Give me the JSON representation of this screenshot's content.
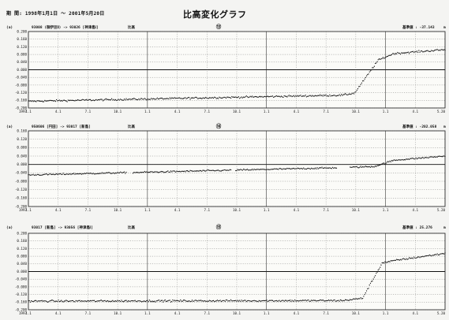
{
  "header": {
    "period_text": "期 間: 1998年1月1日 〜 2001年5月20日",
    "title": "比高変化グラフ"
  },
  "chart_data": [
    {
      "type": "scatter",
      "index_label": "(a)",
      "number": "⑬",
      "pair": "93008 (御伊豆Ⅱ) -> 93026 [神津島Ⅰ]",
      "component": "比高",
      "reference_label": "基準値 : -37.143",
      "unit": "m",
      "x_start_label": "1997",
      "x_tick_labels": [
        "1.1",
        "4.1",
        "7.1",
        "10.1",
        "1.1",
        "4.1",
        "7.1",
        "10.1",
        "1.1",
        "4.1",
        "7.1",
        "10.1",
        "1.1",
        "4.1",
        "5.20"
      ],
      "y_tick_labels": [
        "0.200",
        "0.160",
        "0.120",
        "0.080",
        "0.040",
        "0.000",
        "-0.040",
        "-0.080",
        "-0.120",
        "-0.160",
        "-0.200"
      ],
      "ylim": [
        -0.2,
        0.2
      ],
      "x_range_months": [
        0,
        53
      ],
      "series": [
        {
          "values_description": "piecewise",
          "points": [
            [
              0,
              -0.165
            ],
            [
              40,
              -0.133
            ],
            [
              41.5,
              -0.122
            ],
            [
              44.5,
              0.05
            ],
            [
              46.5,
              0.085
            ],
            [
              53,
              0.105
            ]
          ],
          "noise": 0.008
        }
      ],
      "zero_line": 0.0
    },
    {
      "type": "scatter",
      "index_label": "(a)",
      "number": "⑭",
      "pair": "950606 [円田] -> 93017 [新島]",
      "component": "比高",
      "reference_label": "基準値 : -202.058",
      "unit": "m",
      "x_start_label": "1997",
      "x_tick_labels": [
        "1.1",
        "4.1",
        "7.1",
        "10.1",
        "1.1",
        "4.1",
        "7.1",
        "10.1",
        "1.1",
        "4.1",
        "7.1",
        "10.1",
        "1.1",
        "4.1",
        "5.20"
      ],
      "y_tick_labels": [
        "0.160",
        "0.120",
        "0.080",
        "0.040",
        "0.000",
        "-0.040",
        "-0.080",
        "-0.120",
        "-0.160",
        "-0.200"
      ],
      "ylim": [
        -0.2,
        0.16
      ],
      "x_range_months": [
        0,
        53
      ],
      "series": [
        {
          "values_description": "piecewise",
          "points": [
            [
              0,
              -0.05
            ],
            [
              40,
              -0.015
            ],
            [
              44,
              -0.01
            ],
            [
              46.5,
              0.02
            ],
            [
              53,
              0.04
            ]
          ],
          "noise": 0.006
        }
      ],
      "zero_line": 0.0
    },
    {
      "type": "scatter",
      "index_label": "(a)",
      "number": "⑮",
      "pair": "93017 [新島] -> 93056 [神津島Ⅰ]",
      "component": "比高",
      "reference_label": "基準値 : 25.276",
      "unit": "m",
      "x_start_label": "1997",
      "x_tick_labels": [
        "1.1",
        "4.1",
        "7.1",
        "10.1",
        "1.1",
        "4.1",
        "7.1",
        "10.1",
        "1.1",
        "4.1",
        "7.1",
        "10.1",
        "1.1",
        "4.1",
        "5.20"
      ],
      "y_tick_labels": [
        "0.200",
        "0.160",
        "0.120",
        "0.080",
        "0.040",
        "0.000",
        "-0.040",
        "-0.080",
        "-0.120",
        "-0.160",
        "-0.200"
      ],
      "ylim": [
        -0.2,
        0.2
      ],
      "x_range_months": [
        0,
        53
      ],
      "series": [
        {
          "values_description": "piecewise",
          "points": [
            [
              0,
              -0.155
            ],
            [
              40,
              -0.152
            ],
            [
              42.5,
              -0.14
            ],
            [
              45,
              0.045
            ],
            [
              47,
              0.06
            ],
            [
              53,
              0.095
            ]
          ],
          "noise": 0.008
        }
      ],
      "zero_line": 0.0
    }
  ]
}
